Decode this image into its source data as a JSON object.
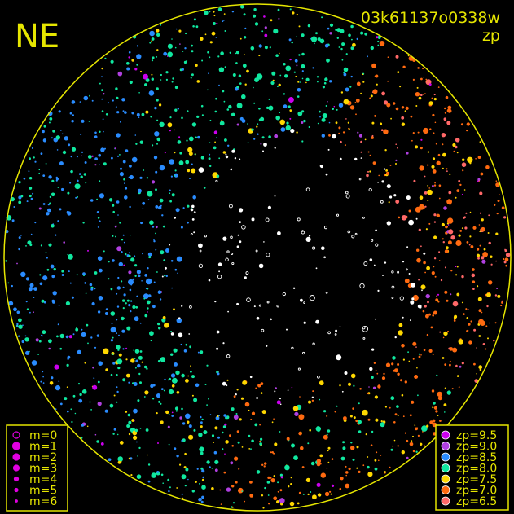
{
  "header": {
    "direction_label": "NE",
    "image_id": "03k61137o0338w",
    "quantity_label": "zp"
  },
  "chart_data": {
    "type": "scatter",
    "projection": "all-sky polar",
    "frame_color": "#e6e600",
    "magnitude_legend": {
      "position": "bottom-left",
      "entries": [
        "m=0",
        "m=1",
        "m=2",
        "m=3",
        "m=4",
        "m=5",
        "m=6"
      ],
      "marker_color": "#e000e0"
    },
    "zp_legend": {
      "position": "bottom-right",
      "entries": [
        {
          "label": "zp=9.5",
          "value": 9.5,
          "color": "#cc00ee"
        },
        {
          "label": "zp=9.0",
          "value": 9.0,
          "color": "#b040e0"
        },
        {
          "label": "zp=8.5",
          "value": 8.5,
          "color": "#2a8cff"
        },
        {
          "label": "zp=8.0",
          "value": 8.0,
          "color": "#10e8a0"
        },
        {
          "label": "zp=7.5",
          "value": 7.5,
          "color": "#ffd800"
        },
        {
          "label": "zp=7.0",
          "value": 7.0,
          "color": "#ff6a10"
        },
        {
          "label": "zp=6.5",
          "value": 6.5,
          "color": "#ff6868"
        }
      ]
    },
    "unmatched_color": "#ffffff"
  }
}
